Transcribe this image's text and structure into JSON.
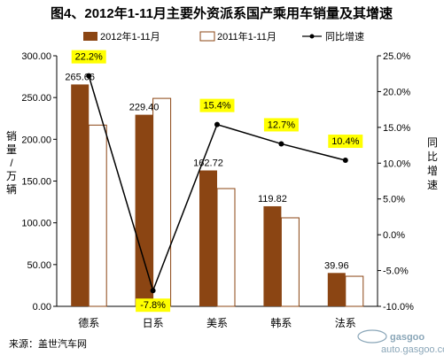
{
  "chart_data": {
    "type": "bar",
    "title": "图4、2012年1-11月主要外资派系国产乘用车销量及其增速",
    "categories": [
      "德系",
      "日系",
      "美系",
      "韩系",
      "法系"
    ],
    "series": [
      {
        "name": "2012年1-11月",
        "values": [
          265.66,
          229.4,
          162.72,
          119.82,
          39.96
        ],
        "color": "#8b4513",
        "labels": [
          "265.66",
          "229.40",
          "162.72",
          "119.82",
          "39.96"
        ]
      },
      {
        "name": "2011年1-11月",
        "values": [
          217,
          249,
          141,
          106,
          36
        ],
        "color": "#ffffff",
        "stroke": "#8b4513"
      },
      {
        "name": "同比增速",
        "type": "line",
        "axis": "right",
        "values": [
          22.2,
          -7.8,
          15.4,
          12.7,
          10.4
        ],
        "labels": [
          "22.2%",
          "-7.8%",
          "15.4%",
          "12.7%",
          "10.4%"
        ],
        "color": "#000000",
        "label_bg": "#ffff00"
      }
    ],
    "ylabel": "销量/万辆",
    "y2label": "同比增速",
    "ylim": [
      0,
      300
    ],
    "y2lim": [
      -10,
      25
    ],
    "yticks": [
      "0.00",
      "50.00",
      "100.00",
      "150.00",
      "200.00",
      "250.00",
      "300.00"
    ],
    "y2ticks": [
      "-10.0%",
      "-5.0%",
      "0.0%",
      "5.0%",
      "10.0%",
      "15.0%",
      "20.0%",
      "25.0%"
    ],
    "legend": "top"
  },
  "footer": {
    "source": "来源：盖世汽车网",
    "watermark_logo": "gasgoo",
    "watermark_url": "auto.gasgoo.com"
  }
}
